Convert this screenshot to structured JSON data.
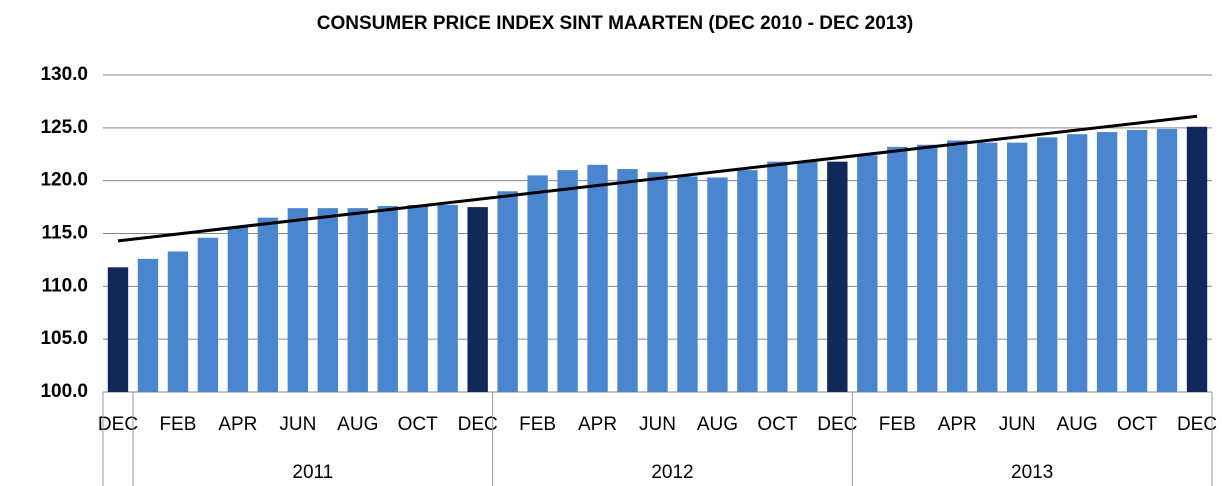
{
  "chart_data": {
    "type": "bar",
    "title": "CONSUMER PRICE INDEX SINT MAARTEN (DEC 2010 - DEC 2013)",
    "categories": [
      "DEC",
      null,
      "FEB",
      null,
      "APR",
      null,
      "JUN",
      null,
      "AUG",
      null,
      "OCT",
      null,
      "DEC",
      null,
      "FEB",
      null,
      "APR",
      null,
      "JUN",
      null,
      "AUG",
      null,
      "OCT",
      null,
      "DEC",
      null,
      "FEB",
      null,
      "APR",
      null,
      "JUN",
      null,
      "AUG",
      null,
      "OCT",
      null,
      "DEC"
    ],
    "values": [
      111.8,
      112.6,
      113.3,
      114.6,
      115.6,
      116.5,
      117.4,
      117.4,
      117.4,
      117.6,
      117.7,
      117.7,
      117.5,
      119.0,
      120.5,
      121.0,
      121.5,
      121.1,
      120.8,
      120.4,
      120.3,
      121.0,
      121.8,
      121.8,
      121.8,
      122.4,
      123.2,
      123.4,
      123.8,
      123.6,
      123.6,
      124.1,
      124.4,
      124.6,
      124.8,
      124.9,
      125.1
    ],
    "colors": [
      "#10285a",
      "#4a86cf",
      "#4a86cf",
      "#4a86cf",
      "#4a86cf",
      "#4a86cf",
      "#4a86cf",
      "#4a86cf",
      "#4a86cf",
      "#4a86cf",
      "#4a86cf",
      "#4a86cf",
      "#10285a",
      "#4a86cf",
      "#4a86cf",
      "#4a86cf",
      "#4a86cf",
      "#4a86cf",
      "#4a86cf",
      "#4a86cf",
      "#4a86cf",
      "#4a86cf",
      "#4a86cf",
      "#4a86cf",
      "#10285a",
      "#4a86cf",
      "#4a86cf",
      "#4a86cf",
      "#4a86cf",
      "#4a86cf",
      "#4a86cf",
      "#4a86cf",
      "#4a86cf",
      "#4a86cf",
      "#4a86cf",
      "#4a86cf",
      "#10285a"
    ],
    "groups": [
      {
        "label": "2011",
        "start": 1,
        "end": 12
      },
      {
        "label": "2012",
        "start": 13,
        "end": 24
      },
      {
        "label": "2013",
        "start": 25,
        "end": 36
      }
    ],
    "trend": [
      114.3,
      126.1
    ],
    "ylim": [
      100,
      130
    ],
    "yticks": [
      {
        "value": 100,
        "label": "100.0"
      },
      {
        "value": 105,
        "label": "105.0"
      },
      {
        "value": 110,
        "label": "110.0"
      },
      {
        "value": 115,
        "label": "115.0"
      },
      {
        "value": 120,
        "label": "120.0"
      },
      {
        "value": 125,
        "label": "125.0"
      },
      {
        "value": 130,
        "label": "130.0"
      }
    ],
    "grid": true
  }
}
